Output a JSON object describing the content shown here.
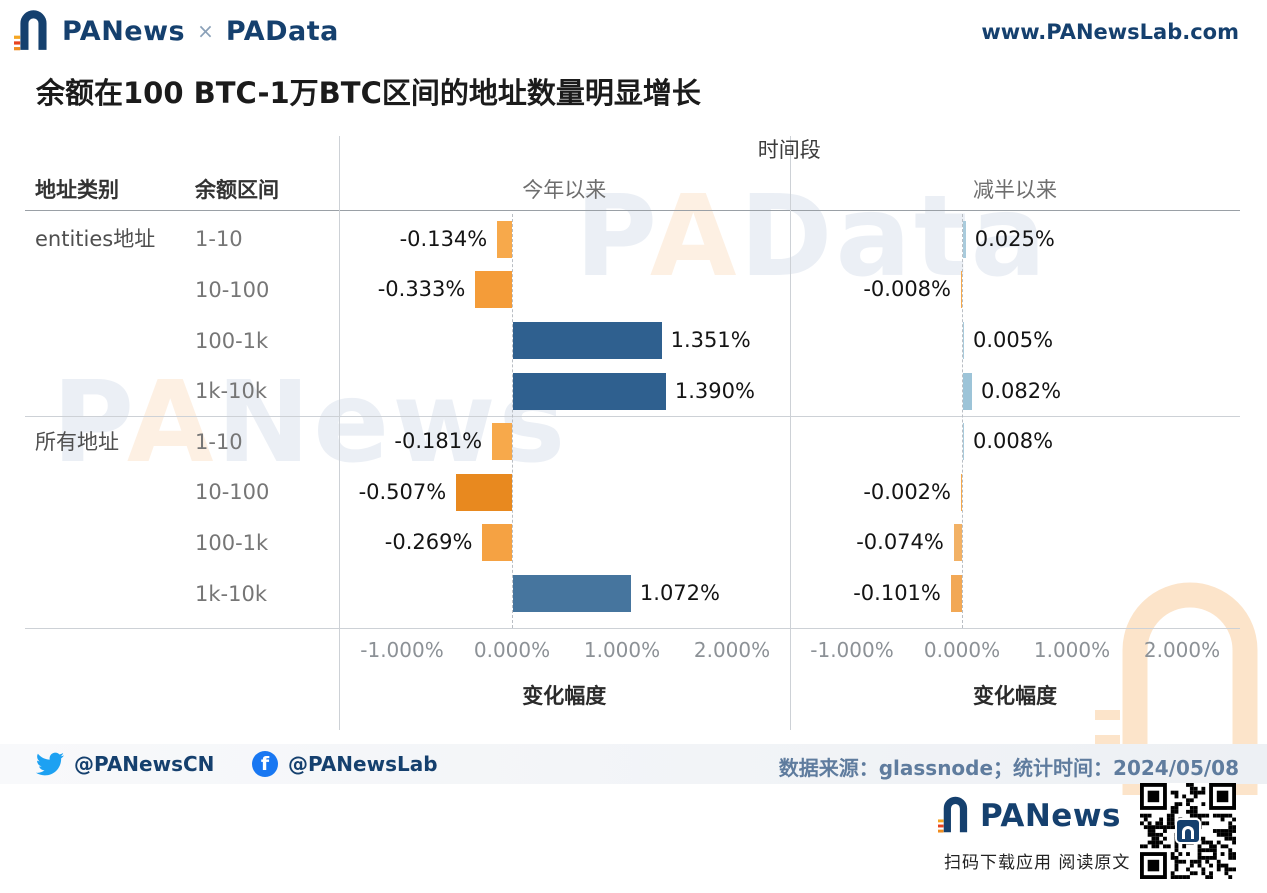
{
  "header": {
    "brand": "PANews",
    "cross": "×",
    "brand2": "PAData",
    "site": "www.PANewsLab.com"
  },
  "title": "余额在100 BTC-1万BTC区间的地址数量明显增长",
  "watermarks": {
    "padata": {
      "pre": "P",
      "accent": "A",
      "rest": "Data"
    },
    "panews": {
      "pre": "P",
      "accent": "A",
      "rest": "News"
    }
  },
  "chart_data": {
    "type": "bar",
    "orientation": "horizontal",
    "period_header": "时间段",
    "category_header": "地址类别",
    "range_header": "余额区间",
    "panels": [
      {
        "name": "今年以来",
        "xlabel": "变化幅度"
      },
      {
        "name": "减半以来",
        "xlabel": "变化幅度"
      }
    ],
    "x_ticks": {
      "labels": [
        "-1.000%",
        "0.000%",
        "1.000%",
        "2.000%"
      ],
      "values": [
        -1,
        0,
        1,
        2
      ]
    },
    "xlim": [
      -1.5,
      2.5
    ],
    "groups": [
      {
        "category": "entities地址",
        "rows": [
          {
            "range": "1-10",
            "values": [
              -0.134,
              0.025
            ],
            "labels": [
              "-0.134%",
              "0.025%"
            ]
          },
          {
            "range": "10-100",
            "values": [
              -0.333,
              -0.008
            ],
            "labels": [
              "-0.333%",
              "-0.008%"
            ]
          },
          {
            "range": "100-1k",
            "values": [
              1.351,
              0.005
            ],
            "labels": [
              "1.351%",
              "0.005%"
            ]
          },
          {
            "range": "1k-10k",
            "values": [
              1.39,
              0.082
            ],
            "labels": [
              "1.390%",
              "0.082%"
            ]
          }
        ]
      },
      {
        "category": "所有地址",
        "rows": [
          {
            "range": "1-10",
            "values": [
              -0.181,
              0.008
            ],
            "labels": [
              "-0.181%",
              "0.008%"
            ]
          },
          {
            "range": "10-100",
            "values": [
              -0.507,
              -0.002
            ],
            "labels": [
              "-0.507%",
              "-0.002%"
            ]
          },
          {
            "range": "100-1k",
            "values": [
              -0.269,
              -0.074
            ],
            "labels": [
              "-0.269%",
              "-0.074%"
            ]
          },
          {
            "range": "1k-10k",
            "values": [
              1.072,
              -0.101
            ],
            "labels": [
              "1.072%",
              "-0.101%"
            ]
          }
        ]
      }
    ],
    "bar_colors": {
      "panel1": [
        "#F7A94B",
        "#F49C39",
        "#2F608F",
        "#2F608F",
        "#F7A94B",
        "#E8891F",
        "#F5A243",
        "#46759E"
      ],
      "panel2": [
        "#A9CBDC",
        "#F7A94B",
        "#A9CBDC",
        "#9DC4D8",
        "#A9CBDC",
        "#F7A94B",
        "#F2B165",
        "#F2A855"
      ]
    },
    "brand_colors": {
      "navy": "#15406E",
      "orange": "#F5A142",
      "red": "#E8431F"
    }
  },
  "footer": {
    "twitter": "@PANewsCN",
    "facebook": "@PANewsLab",
    "facebook_icon_letter": "f",
    "source": "数据来源：glassnode；统计时间：2024/05/08"
  },
  "bottom": {
    "brand": "PANews",
    "caption": "扫码下载应用 阅读原文"
  }
}
